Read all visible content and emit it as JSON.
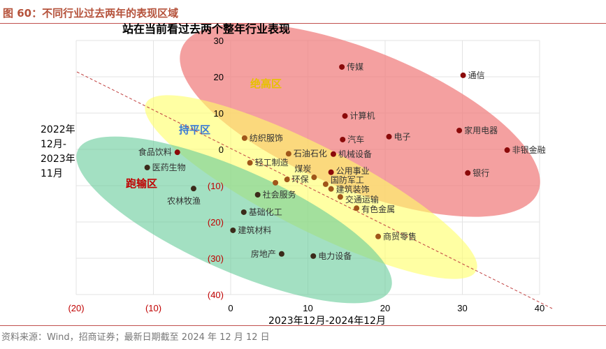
{
  "figure_title": "图 60：不同行业过去两年的表现区域",
  "source": "资料来源：Wind，招商证券；最新日期截至 2024 年 12 月 12 日",
  "chart_data": {
    "type": "scatter",
    "title": "站在当前看过去两个整年行业表现",
    "xlabel": "2023年12月-2024年12月",
    "ylabel": [
      "2022年",
      "12月-",
      "2023年",
      "11月"
    ],
    "xlim": [
      -20,
      40
    ],
    "ylim": [
      -40,
      30
    ],
    "xticks": [
      {
        "v": -20,
        "t": "(20)"
      },
      {
        "v": -10,
        "t": "(10)"
      },
      {
        "v": 0,
        "t": "0"
      },
      {
        "v": 10,
        "t": "10"
      },
      {
        "v": 20,
        "t": "20"
      },
      {
        "v": 30,
        "t": "30"
      },
      {
        "v": 40,
        "t": "40"
      }
    ],
    "yticks": [
      {
        "v": 30,
        "t": "30"
      },
      {
        "v": 20,
        "t": "20"
      },
      {
        "v": 10,
        "t": "10"
      },
      {
        "v": 0,
        "t": "0"
      },
      {
        "v": -10,
        "t": "(10)"
      },
      {
        "v": -20,
        "t": "(20)"
      },
      {
        "v": -30,
        "t": "(30)"
      },
      {
        "v": -40,
        "t": "(40)"
      }
    ],
    "regions": [
      {
        "name": "绝高区",
        "color": "#f08080"
      },
      {
        "name": "持平区",
        "color": "#ffff66"
      },
      {
        "name": "跑输区",
        "color": "#66cc99"
      }
    ],
    "colors": {
      "high": "#8b0a0a",
      "mid": "#a0561a",
      "low": "#3b2a1a",
      "neg_tick": "#c00000"
    },
    "points": [
      {
        "label": "传媒",
        "x": 14.4,
        "y": 22.7,
        "g": "high"
      },
      {
        "label": "通信",
        "x": 30.1,
        "y": 20.4,
        "g": "high"
      },
      {
        "label": "计算机",
        "x": 14.8,
        "y": 9.2,
        "g": "high"
      },
      {
        "label": "汽车",
        "x": 14.5,
        "y": 2.7,
        "g": "high"
      },
      {
        "label": "电子",
        "x": 20.5,
        "y": 3.5,
        "g": "high"
      },
      {
        "label": "家用电器",
        "x": 29.6,
        "y": 5.2,
        "g": "high"
      },
      {
        "label": "非银金融",
        "x": 35.8,
        "y": -0.2,
        "g": "high"
      },
      {
        "label": "银行",
        "x": 30.7,
        "y": -6.5,
        "g": "high"
      },
      {
        "label": "机械设备",
        "x": 13.3,
        "y": -1.3,
        "g": "high"
      },
      {
        "label": "公用事业",
        "x": 13.0,
        "y": -6.3,
        "g": "high"
      },
      {
        "label": "纺织服饰",
        "x": 1.8,
        "y": 3.1,
        "g": "mid"
      },
      {
        "label": "食品饮料",
        "x": -6.9,
        "y": -0.8,
        "g": "high"
      },
      {
        "label": "石油石化",
        "x": 7.5,
        "y": -1.2,
        "g": "mid"
      },
      {
        "label": "轻工制造",
        "x": 2.5,
        "y": -3.7,
        "g": "mid"
      },
      {
        "label": "医药生物",
        "x": -10.8,
        "y": -5.0,
        "g": "low"
      },
      {
        "label": "煤炭",
        "x": 10.8,
        "y": -7.7,
        "g": "mid"
      },
      {
        "label": "环保",
        "x": 7.3,
        "y": -8.3,
        "g": "mid"
      },
      {
        "label": "",
        "x": 5.8,
        "y": -9.2,
        "g": "mid"
      },
      {
        "label": "国防军工",
        "x": 12.3,
        "y": -9.6,
        "g": "mid"
      },
      {
        "label": "建筑装饰",
        "x": 13.0,
        "y": -10.9,
        "g": "mid"
      },
      {
        "label": "农林牧渔",
        "x": -4.8,
        "y": -10.8,
        "g": "low"
      },
      {
        "label": "社会服务",
        "x": 3.5,
        "y": -12.5,
        "g": "low"
      },
      {
        "label": "交通运输",
        "x": 14.2,
        "y": -13.1,
        "g": "mid"
      },
      {
        "label": "有色金属",
        "x": 16.3,
        "y": -16.2,
        "g": "mid"
      },
      {
        "label": "基础化工",
        "x": 1.7,
        "y": -17.3,
        "g": "low"
      },
      {
        "label": "建筑材料",
        "x": 0.3,
        "y": -22.3,
        "g": "low"
      },
      {
        "label": "商贸零售",
        "x": 19.1,
        "y": -24.0,
        "g": "mid"
      },
      {
        "label": "房地产",
        "x": 6.6,
        "y": -28.8,
        "g": "low"
      },
      {
        "label": "电力设备",
        "x": 10.7,
        "y": -29.4,
        "g": "low"
      }
    ]
  }
}
